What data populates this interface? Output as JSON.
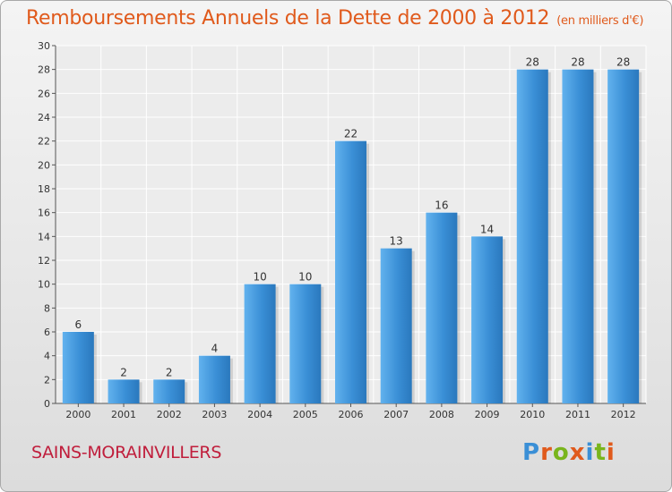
{
  "chart_data": {
    "type": "bar",
    "title": "Remboursements Annuels de la Dette de 2000 à 2012",
    "unit": "(en milliers d'€)",
    "categories": [
      "2000",
      "2001",
      "2002",
      "2003",
      "2004",
      "2005",
      "2006",
      "2007",
      "2008",
      "2009",
      "2010",
      "2011",
      "2012"
    ],
    "values": [
      6,
      2,
      2,
      4,
      10,
      10,
      22,
      13,
      16,
      14,
      28,
      28,
      28
    ],
    "ylim": [
      0,
      30
    ],
    "yticks": [
      0,
      2,
      4,
      6,
      8,
      10,
      12,
      14,
      16,
      18,
      20,
      22,
      24,
      26,
      28,
      30
    ],
    "grid": true,
    "legend": "none",
    "bar_color": "#3a8fd6",
    "bar_color_light": "#62b2ee",
    "bar_color_dark": "#2a78bd"
  },
  "footer": {
    "commune": "SAINS-MORAINVILLERS",
    "brand": "Proxiti",
    "brand_colors": [
      "#3a8fd6",
      "#e05a1c",
      "#79b51c",
      "#e05a1c",
      "#3a8fd6",
      "#79b51c",
      "#e05a1c"
    ]
  },
  "colors": {
    "title": "#e05a1c",
    "commune": "#c01e3c"
  }
}
